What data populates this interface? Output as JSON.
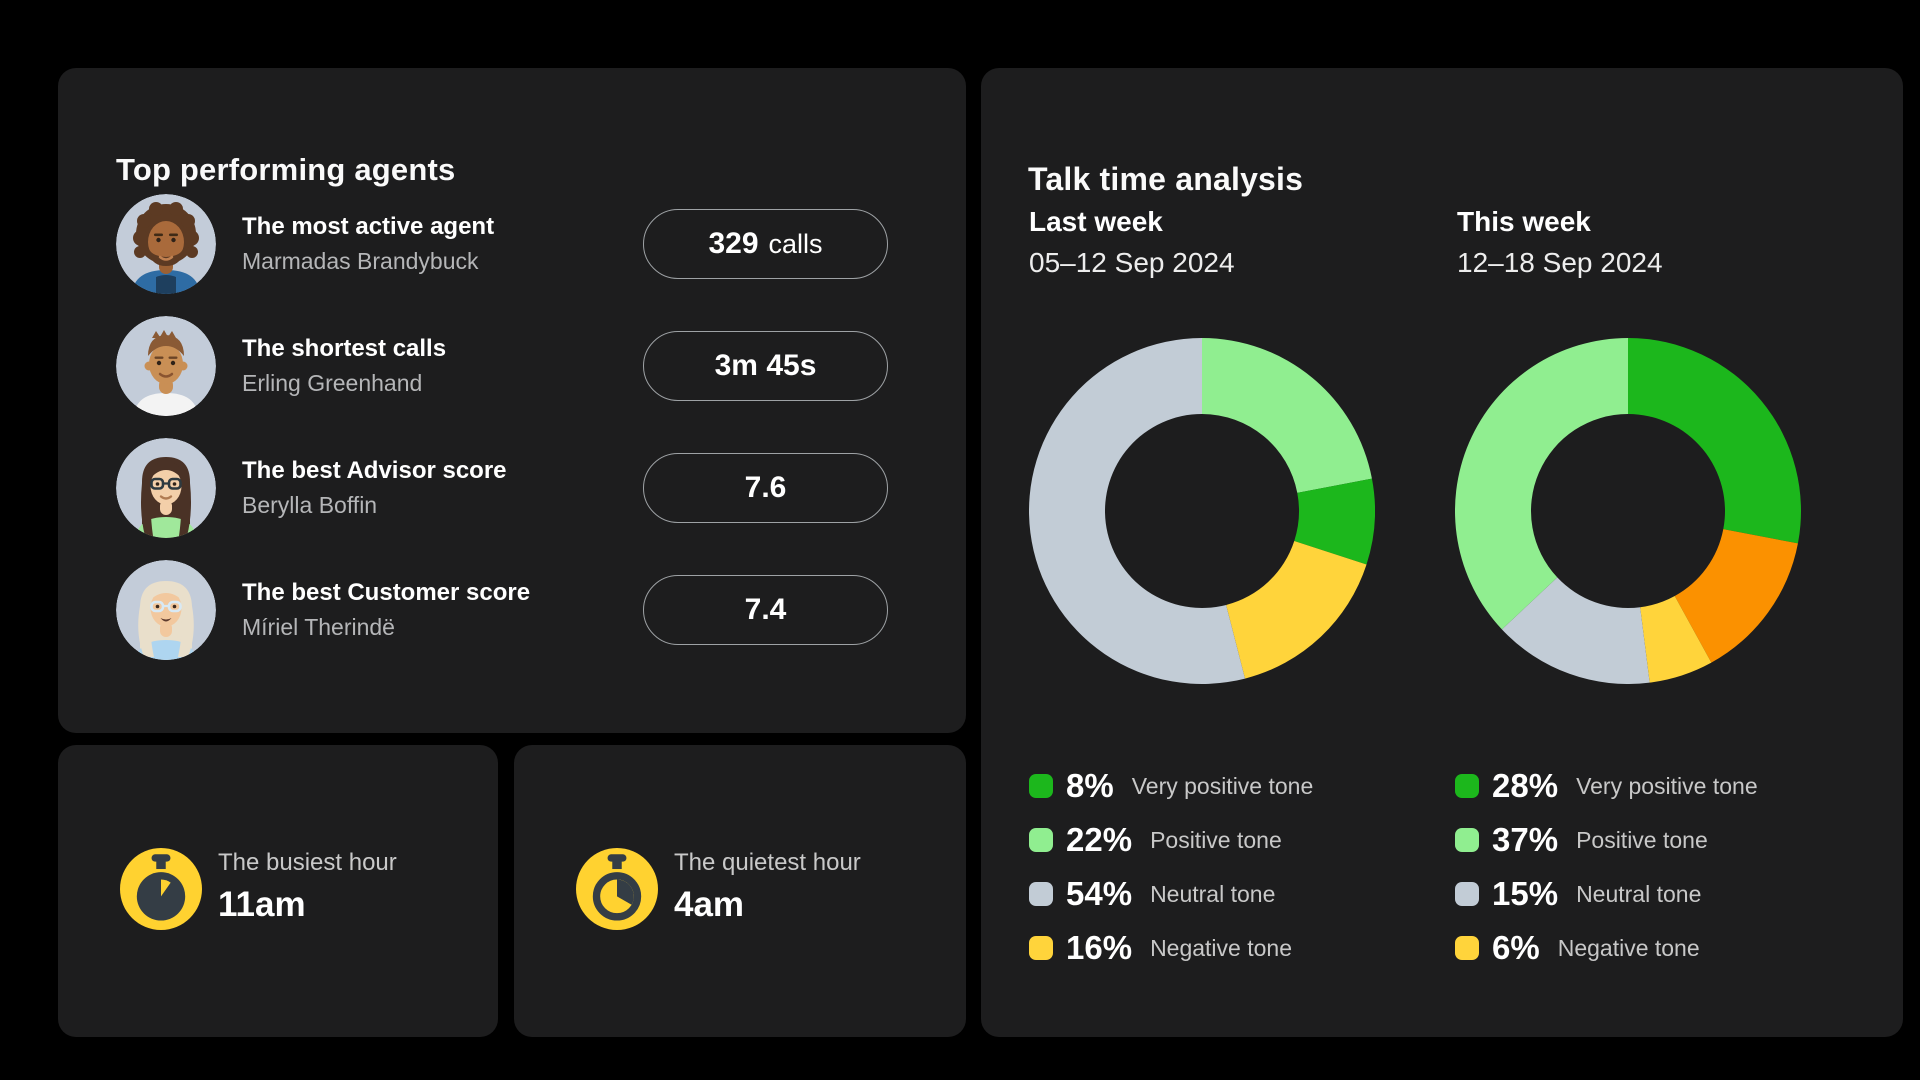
{
  "page": {
    "background": "#000000",
    "card_background": "#1D1D1E"
  },
  "top_agents": {
    "title": "Top performing agents",
    "rows": [
      {
        "category": "The most active agent",
        "name": "Marmadas Brandybuck",
        "stat": "329",
        "stat_unit": "calls",
        "avatar_icon": "man-curly-hair-beard-avatar"
      },
      {
        "category": "The shortest calls",
        "name": "Erling Greenhand",
        "stat": "3m 45s",
        "stat_unit": "",
        "avatar_icon": "young-man-short-hair-avatar"
      },
      {
        "category": "The best Advisor score",
        "name": "Berylla Boffin",
        "stat": "7.6",
        "stat_unit": "",
        "avatar_icon": "woman-glasses-long-hair-avatar"
      },
      {
        "category": "The best Customer score",
        "name": "Míriel Therindë",
        "stat": "7.4",
        "stat_unit": "",
        "avatar_icon": "older-woman-glasses-avatar"
      }
    ]
  },
  "hours": {
    "busiest": {
      "label": "The busiest hour",
      "value": "11am",
      "icon": "stopwatch-icon"
    },
    "quietest": {
      "label": "The quietest hour",
      "value": "4am",
      "icon": "stopwatch-icon"
    },
    "icon_colors": {
      "circle": "#FFD230",
      "glyph": "#343D45"
    }
  },
  "talk_time": {
    "title": "Talk time analysis"
  },
  "chart_data": [
    {
      "type": "pie",
      "style": "donut",
      "title": "Last week",
      "subtitle": "05–12 Sep 2024",
      "segments_clockwise_from_top": [
        {
          "label": "Positive tone",
          "value": 22,
          "color": "#90EE90"
        },
        {
          "label": "Very positive tone",
          "value": 8,
          "color": "#1CB71C"
        },
        {
          "label": "Negative tone",
          "value": 16,
          "color": "#FFD43B"
        },
        {
          "label": "Neutral tone",
          "value": 54,
          "color": "#C2CCD6"
        }
      ],
      "legend": [
        {
          "pct": "8%",
          "label": "Very positive tone",
          "color": "#1CB71C"
        },
        {
          "pct": "22%",
          "label": "Positive tone",
          "color": "#90EE90"
        },
        {
          "pct": "54%",
          "label": "Neutral tone",
          "color": "#C2CCD6"
        },
        {
          "pct": "16%",
          "label": "Negative tone",
          "color": "#FFD43B"
        }
      ]
    },
    {
      "type": "pie",
      "style": "donut",
      "title": "This week",
      "subtitle": "12–18 Sep 2024",
      "segments_clockwise_from_top": [
        {
          "label": "Very positive tone",
          "value": 28,
          "color": "#1CB71C"
        },
        {
          "label": "",
          "value": 14,
          "color": "#FB9100"
        },
        {
          "label": "Negative tone",
          "value": 6,
          "color": "#FFD43B"
        },
        {
          "label": "Neutral tone",
          "value": 15,
          "color": "#C2CCD6"
        },
        {
          "label": "Positive tone",
          "value": 37,
          "color": "#90EE90"
        }
      ],
      "legend": [
        {
          "pct": "28%",
          "label": "Very positive tone",
          "color": "#1CB71C"
        },
        {
          "pct": "37%",
          "label": "Positive tone",
          "color": "#90EE90"
        },
        {
          "pct": "15%",
          "label": "Neutral tone",
          "color": "#C2CCD6"
        },
        {
          "pct": "6%",
          "label": "Negative tone",
          "color": "#FFD43B"
        }
      ]
    }
  ]
}
